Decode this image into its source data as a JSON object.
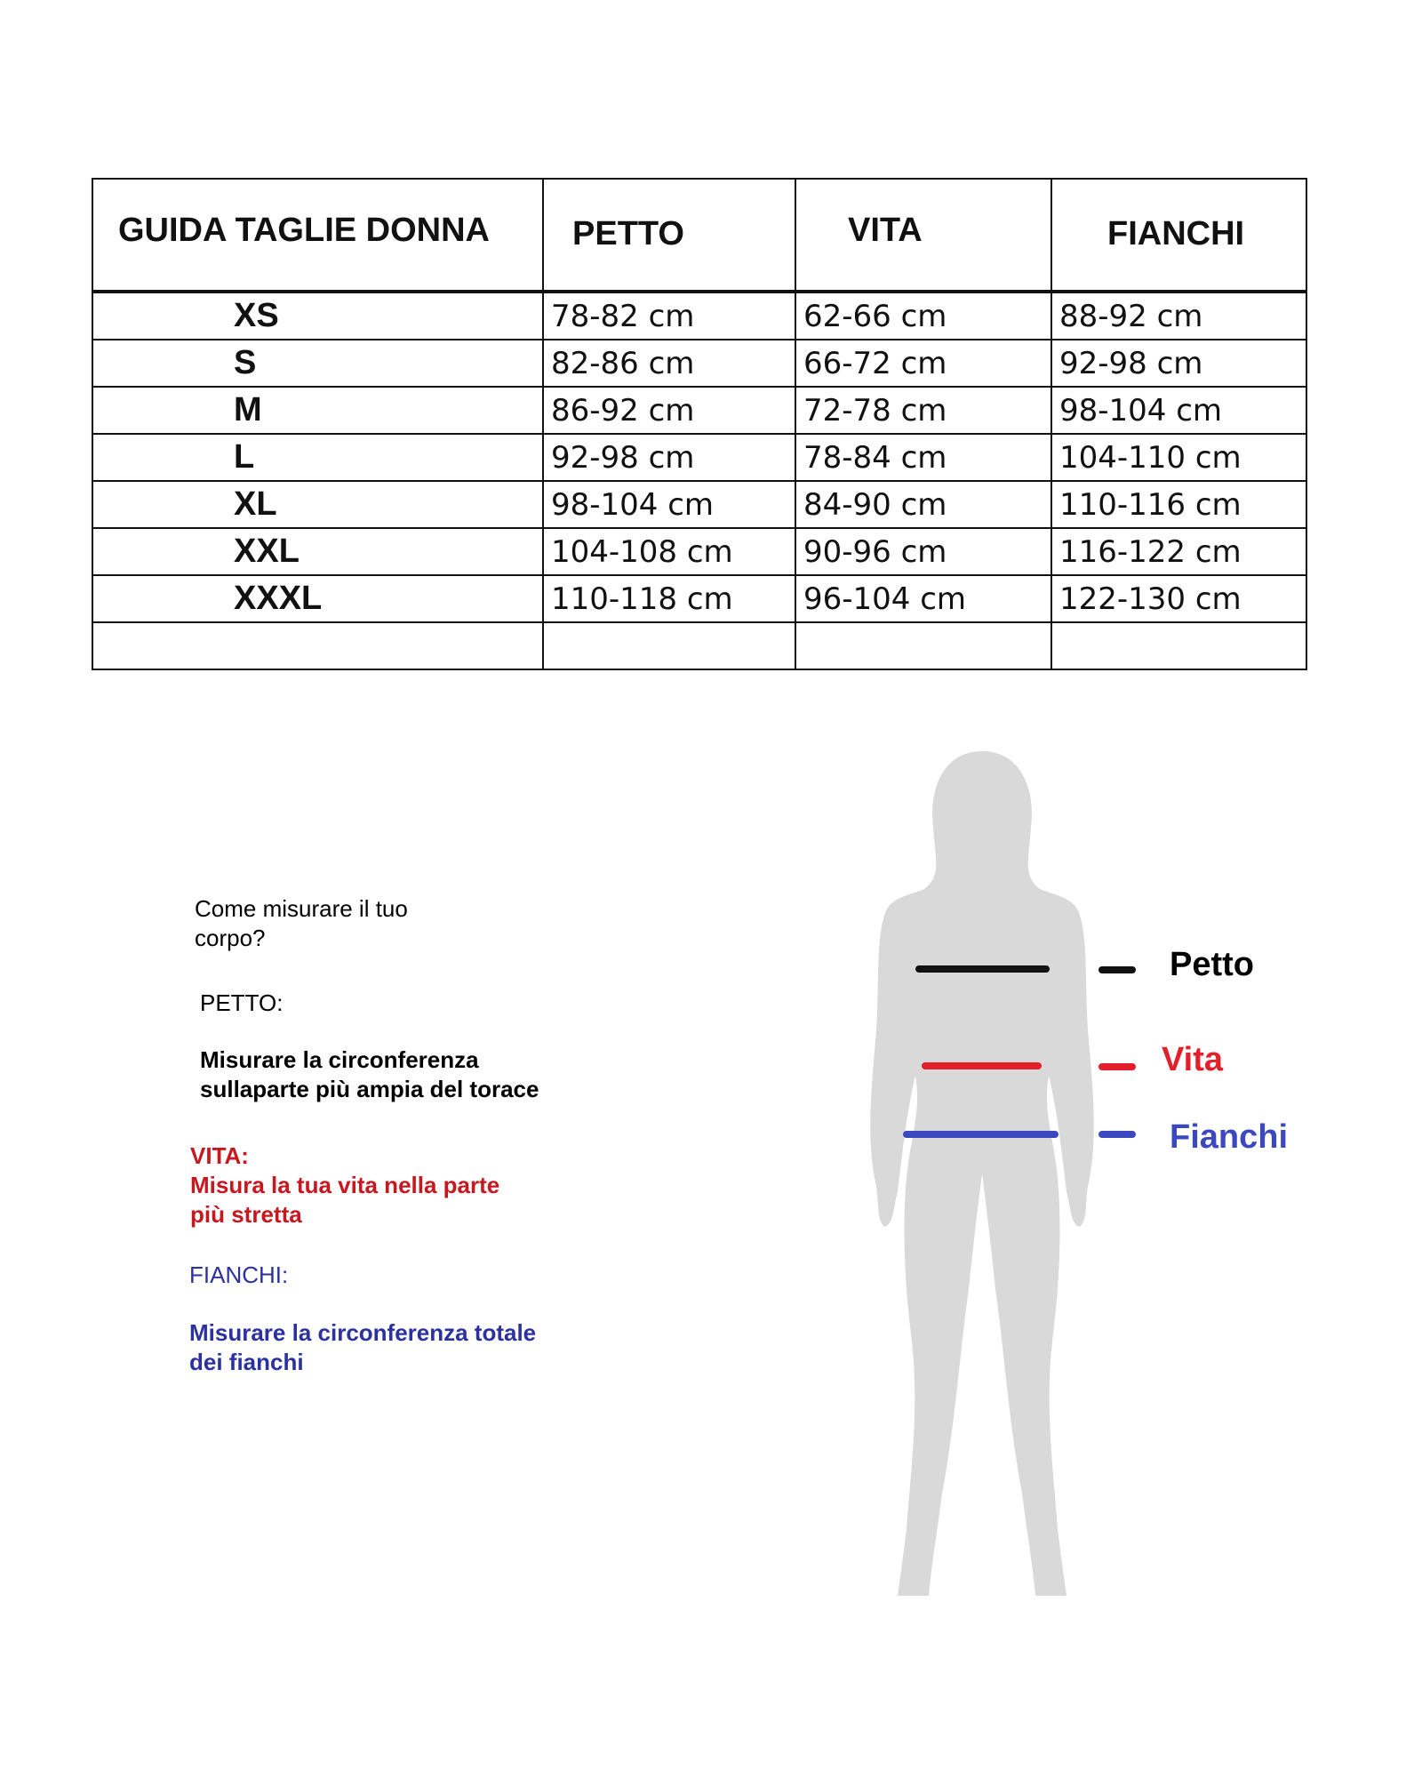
{
  "table": {
    "headers": [
      "GUIDA TAGLIE DONNA",
      "PETTO",
      "VITA",
      "FIANCHI"
    ],
    "rows": [
      [
        "XS",
        "78-82 cm",
        "62-66 cm",
        "88-92 cm"
      ],
      [
        "S",
        "82-86 cm",
        "66-72 cm",
        "92-98 cm"
      ],
      [
        "M",
        "86-92 cm",
        "72-78 cm",
        "98-104 cm"
      ],
      [
        "L",
        "92-98 cm",
        "78-84 cm",
        "104-110 cm"
      ],
      [
        "XL",
        "98-104 cm",
        "84-90 cm",
        "110-116 cm"
      ],
      [
        "XXL",
        "104-108 cm",
        "90-96 cm",
        "116-122 cm"
      ],
      [
        "XXXL",
        "110-118 cm",
        "96-104 cm",
        "122-130 cm"
      ],
      [
        "",
        "",
        "",
        ""
      ]
    ]
  },
  "instructions": {
    "title_1": "Come misurare il tuo",
    "title_2": "corpo?",
    "petto_label": "PETTO:",
    "petto_1": "Misurare la circonferenza",
    "petto_2": "sullaparte più ampia del torace",
    "vita_label": "VITA:",
    "vita_1": "Misura la tua vita nella parte",
    "vita_2": "più stretta",
    "fianchi_label": "FIANCHI:",
    "fianchi_1": "Misurare la circonferenza totale",
    "fianchi_2": "dei fianchi"
  },
  "legend": {
    "petto": "Petto",
    "vita": "Vita",
    "fianchi": "Fianchi"
  },
  "colors": {
    "petto": "#111111",
    "vita": "#e3202a",
    "fianchi": "#3c48c0",
    "silhouette": "#d9d9d9"
  }
}
